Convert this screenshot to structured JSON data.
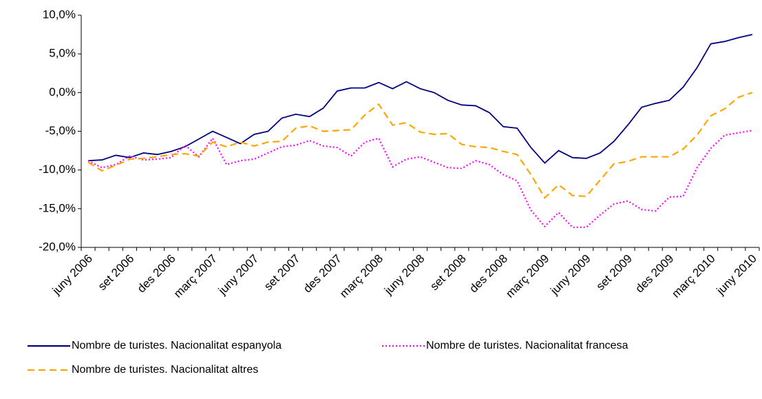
{
  "chart_data": {
    "type": "line",
    "categories": [
      "juny 2006",
      null,
      null,
      "set 2006",
      null,
      null,
      "des 2006",
      null,
      null,
      "març 2007",
      null,
      null,
      "juny 2007",
      null,
      null,
      "set 2007",
      null,
      null,
      "des 2007",
      null,
      null,
      "març 2008",
      null,
      null,
      "juny 2008",
      null,
      null,
      "set 2008",
      null,
      null,
      "des 2008",
      null,
      null,
      "març 2009",
      null,
      null,
      "juny 2009",
      null,
      null,
      "set 2009",
      null,
      null,
      "des 2009",
      null,
      null,
      "març 2010",
      null,
      null,
      "juny 2010"
    ],
    "series": [
      {
        "name": "Nombre de turistes. Nacionalitat espanyola",
        "color": "#000080",
        "dash": "solid",
        "values": [
          -8.8,
          -8.7,
          -8.1,
          -8.4,
          -7.8,
          -8.0,
          -7.6,
          -7.0,
          -6.0,
          -5.0,
          -5.8,
          -6.6,
          -5.4,
          -5.0,
          -3.3,
          -2.8,
          -3.1,
          -2.0,
          0.2,
          0.6,
          0.6,
          1.3,
          0.5,
          1.4,
          0.5,
          0.0,
          -1.0,
          -1.6,
          -1.7,
          -2.6,
          -4.4,
          -4.6,
          -7.1,
          -9.1,
          -7.5,
          -8.4,
          -8.5,
          -7.8,
          -6.3,
          -4.2,
          -1.9,
          -1.4,
          -1.0,
          0.7,
          3.2,
          6.3,
          6.6,
          7.1,
          7.5
        ]
      },
      {
        "name": "Nombre de turistes. Nacionalitat francesa",
        "color": "#ff00ff",
        "dash": "dot",
        "values": [
          -8.8,
          -9.7,
          -9.3,
          -8.2,
          -8.7,
          -8.6,
          -8.4,
          -6.8,
          -8.3,
          -5.9,
          -9.3,
          -8.8,
          -8.6,
          -7.8,
          -7.0,
          -6.8,
          -6.2,
          -6.9,
          -7.1,
          -8.2,
          -6.4,
          -5.9,
          -9.6,
          -8.6,
          -8.3,
          -9.0,
          -9.7,
          -9.8,
          -8.8,
          -9.3,
          -10.6,
          -11.4,
          -15.2,
          -17.3,
          -15.5,
          -17.4,
          -17.4,
          -15.8,
          -14.4,
          -14.0,
          -15.1,
          -15.3,
          -13.5,
          -13.4,
          -9.7,
          -7.2,
          -5.5,
          -5.2,
          -4.9
        ]
      },
      {
        "name": "Nombre de turistes. Nacionalitat altres",
        "color": "#ffa500",
        "dash": "dash",
        "values": [
          -9.0,
          -10.1,
          -9.4,
          -8.6,
          -8.5,
          -8.3,
          -8.0,
          -7.9,
          -8.2,
          -6.4,
          -7.0,
          -6.4,
          -6.9,
          -6.4,
          -6.3,
          -4.6,
          -4.3,
          -5.0,
          -4.9,
          -4.8,
          -2.9,
          -1.5,
          -4.2,
          -3.9,
          -5.1,
          -5.4,
          -5.3,
          -6.7,
          -7.0,
          -7.1,
          -7.6,
          -8.0,
          -10.6,
          -13.6,
          -11.9,
          -13.3,
          -13.4,
          -11.3,
          -9.2,
          -8.9,
          -8.3,
          -8.3,
          -8.3,
          -7.3,
          -5.5,
          -3.0,
          -2.1,
          -0.6,
          0.0
        ]
      }
    ],
    "ylim": [
      -20,
      10
    ],
    "yticks": [
      {
        "value": -20,
        "label": "-20,0%"
      },
      {
        "value": -15,
        "label": "-15,0%"
      },
      {
        "value": -10,
        "label": "-10,0%"
      },
      {
        "value": -5,
        "label": "-5,0%"
      },
      {
        "value": 0,
        "label": "0,0%"
      },
      {
        "value": 5,
        "label": "5,0%"
      },
      {
        "value": 10,
        "label": "10,0%"
      }
    ],
    "legend": "bottom"
  }
}
